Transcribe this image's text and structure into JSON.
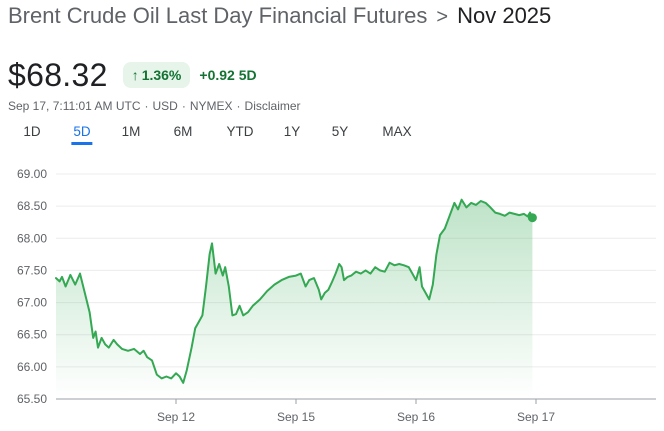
{
  "header": {
    "parent": "Brent Crude Oil Last Day Financial Futures",
    "separator": ">",
    "current": "Nov 2025"
  },
  "quote": {
    "price": "$68.32",
    "change_pct": "1.36%",
    "change_abs": "+0.92 5D",
    "arrow_icon": "arrow-up-icon",
    "positive_color": "#137333",
    "badge_bg": "#e6f4ea"
  },
  "meta": {
    "timestamp": "Sep 17, 7:11:01 AM UTC",
    "currency": "USD",
    "exchange": "NYMEX",
    "disclaimer": "Disclaimer",
    "sep": "·"
  },
  "tabs": [
    {
      "label": "1D",
      "active": false
    },
    {
      "label": "5D",
      "active": true
    },
    {
      "label": "1M",
      "active": false
    },
    {
      "label": "6M",
      "active": false
    },
    {
      "label": "YTD",
      "active": false
    },
    {
      "label": "1Y",
      "active": false
    },
    {
      "label": "5Y",
      "active": false
    },
    {
      "label": "MAX",
      "active": false
    }
  ],
  "chart_data": {
    "type": "area",
    "xlabel": "",
    "ylabel": "",
    "ylim": [
      65.5,
      69.0
    ],
    "yticks": [
      "69.00",
      "68.50",
      "68.00",
      "67.50",
      "67.00",
      "66.50",
      "66.00",
      "65.50"
    ],
    "xticks": [
      {
        "label": "Sep 12",
        "x": 1.0
      },
      {
        "label": "Sep 15",
        "x": 2.0
      },
      {
        "label": "Sep 16",
        "x": 3.0
      },
      {
        "label": "Sep 17",
        "x": 4.0
      }
    ],
    "grid": "horizontal",
    "line_color": "#34a853",
    "fill_color": "#34a853",
    "series": [
      {
        "points": [
          [
            0.0,
            67.38
          ],
          [
            0.03,
            67.33
          ],
          [
            0.05,
            67.4
          ],
          [
            0.08,
            67.25
          ],
          [
            0.12,
            67.43
          ],
          [
            0.16,
            67.28
          ],
          [
            0.2,
            67.45
          ],
          [
            0.24,
            67.15
          ],
          [
            0.28,
            66.85
          ],
          [
            0.31,
            66.45
          ],
          [
            0.33,
            66.55
          ],
          [
            0.35,
            66.3
          ],
          [
            0.38,
            66.45
          ],
          [
            0.41,
            66.35
          ],
          [
            0.44,
            66.3
          ],
          [
            0.48,
            66.42
          ],
          [
            0.51,
            66.35
          ],
          [
            0.55,
            66.28
          ],
          [
            0.6,
            66.25
          ],
          [
            0.65,
            66.28
          ],
          [
            0.7,
            66.2
          ],
          [
            0.73,
            66.25
          ],
          [
            0.76,
            66.15
          ],
          [
            0.8,
            66.1
          ],
          [
            0.84,
            65.88
          ],
          [
            0.88,
            65.82
          ],
          [
            0.92,
            65.85
          ],
          [
            0.96,
            65.82
          ],
          [
            1.0,
            65.9
          ],
          [
            1.03,
            65.85
          ],
          [
            1.06,
            65.75
          ],
          [
            1.09,
            65.95
          ],
          [
            1.13,
            66.3
          ],
          [
            1.16,
            66.6
          ],
          [
            1.19,
            66.7
          ],
          [
            1.22,
            66.8
          ],
          [
            1.25,
            67.25
          ],
          [
            1.28,
            67.75
          ],
          [
            1.3,
            67.92
          ],
          [
            1.33,
            67.45
          ],
          [
            1.36,
            67.6
          ],
          [
            1.39,
            67.42
          ],
          [
            1.41,
            67.55
          ],
          [
            1.44,
            67.25
          ],
          [
            1.47,
            66.8
          ],
          [
            1.5,
            66.82
          ],
          [
            1.53,
            66.95
          ],
          [
            1.56,
            66.8
          ],
          [
            1.6,
            66.85
          ],
          [
            1.64,
            66.95
          ],
          [
            1.7,
            67.05
          ],
          [
            1.76,
            67.18
          ],
          [
            1.82,
            67.28
          ],
          [
            1.88,
            67.35
          ],
          [
            1.94,
            67.4
          ],
          [
            2.0,
            67.42
          ],
          [
            2.04,
            67.45
          ],
          [
            2.08,
            67.25
          ],
          [
            2.11,
            67.35
          ],
          [
            2.15,
            67.38
          ],
          [
            2.19,
            67.2
          ],
          [
            2.21,
            67.05
          ],
          [
            2.24,
            67.15
          ],
          [
            2.27,
            67.2
          ],
          [
            2.3,
            67.32
          ],
          [
            2.33,
            67.45
          ],
          [
            2.36,
            67.6
          ],
          [
            2.38,
            67.55
          ],
          [
            2.4,
            67.35
          ],
          [
            2.43,
            67.4
          ],
          [
            2.46,
            67.42
          ],
          [
            2.5,
            67.48
          ],
          [
            2.54,
            67.45
          ],
          [
            2.58,
            67.5
          ],
          [
            2.62,
            67.45
          ],
          [
            2.66,
            67.55
          ],
          [
            2.7,
            67.5
          ],
          [
            2.74,
            67.48
          ],
          [
            2.78,
            67.62
          ],
          [
            2.82,
            67.58
          ],
          [
            2.86,
            67.6
          ],
          [
            2.9,
            67.58
          ],
          [
            2.94,
            67.55
          ],
          [
            2.97,
            67.45
          ],
          [
            3.0,
            67.35
          ],
          [
            3.03,
            67.55
          ],
          [
            3.05,
            67.25
          ],
          [
            3.08,
            67.15
          ],
          [
            3.11,
            67.05
          ],
          [
            3.14,
            67.28
          ],
          [
            3.17,
            67.75
          ],
          [
            3.2,
            68.05
          ],
          [
            3.24,
            68.15
          ],
          [
            3.28,
            68.35
          ],
          [
            3.32,
            68.55
          ],
          [
            3.35,
            68.45
          ],
          [
            3.38,
            68.6
          ],
          [
            3.42,
            68.48
          ],
          [
            3.46,
            68.55
          ],
          [
            3.5,
            68.52
          ],
          [
            3.54,
            68.58
          ],
          [
            3.58,
            68.55
          ],
          [
            3.62,
            68.48
          ],
          [
            3.66,
            68.4
          ],
          [
            3.7,
            68.38
          ],
          [
            3.74,
            68.35
          ],
          [
            3.78,
            68.4
          ],
          [
            3.82,
            68.38
          ],
          [
            3.86,
            68.36
          ],
          [
            3.9,
            68.38
          ],
          [
            3.93,
            68.34
          ],
          [
            3.95,
            68.4
          ],
          [
            3.97,
            68.32
          ]
        ]
      }
    ]
  }
}
